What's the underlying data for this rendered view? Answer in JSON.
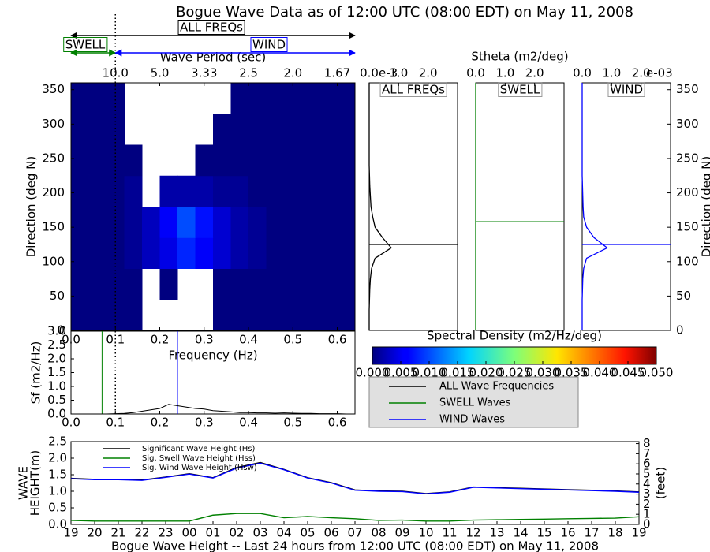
{
  "chart_data": [
    {
      "type": "heatmap",
      "title": "Bogue Wave Data as of 12:00 UTC (08:00 EDT) on May 11, 2008",
      "xlabel": "Frequency (Hz)",
      "x2label": "Wave Period (sec)",
      "ylabel": "Direction (deg N)",
      "x_edges": [
        0,
        0.04,
        0.08,
        0.12,
        0.16,
        0.2,
        0.24,
        0.28,
        0.32,
        0.36,
        0.4,
        0.44,
        0.48,
        0.52,
        0.56,
        0.6,
        0.64
      ],
      "y_edges": [
        0,
        45,
        90,
        135,
        180,
        225,
        270,
        315,
        360
      ],
      "z": [
        [
          0,
          0,
          0,
          0,
          null,
          null,
          null,
          null,
          0,
          0,
          0,
          0,
          0,
          0,
          0,
          0
        ],
        [
          0,
          0,
          0,
          0,
          null,
          0,
          null,
          null,
          0,
          0,
          0,
          0,
          0,
          0,
          0,
          0
        ],
        [
          0,
          0,
          0,
          0.001,
          0.003,
          0.005,
          0.008,
          0.006,
          0.004,
          0.002,
          0.001,
          0,
          0,
          0,
          0,
          0
        ],
        [
          0,
          0,
          0,
          0.001,
          0.003,
          0.006,
          0.01,
          0.007,
          0.004,
          0.002,
          0.001,
          0,
          0,
          0,
          0,
          0
        ],
        [
          0,
          0,
          0,
          0.001,
          null,
          0.002,
          0.002,
          0.002,
          0.001,
          0.001,
          0,
          0,
          0,
          0,
          0,
          0
        ],
        [
          0,
          0,
          0,
          0,
          null,
          null,
          null,
          0,
          0,
          0,
          0,
          0,
          0,
          0,
          0,
          0
        ],
        [
          0,
          0,
          0,
          null,
          null,
          null,
          null,
          null,
          0,
          0,
          0,
          0,
          0,
          0,
          0,
          0
        ],
        [
          0,
          0,
          0,
          null,
          null,
          null,
          null,
          null,
          null,
          0,
          0,
          0,
          0,
          0,
          0,
          0
        ]
      ],
      "xlim": [
        0,
        0.64
      ],
      "ylim": [
        0,
        360
      ],
      "xticks": [
        {
          "value": 0,
          "label": "0.0"
        },
        {
          "value": 0.1,
          "label": "0.1"
        },
        {
          "value": 0.2,
          "label": "0.2"
        },
        {
          "value": 0.3,
          "label": "0.3"
        },
        {
          "value": 0.4,
          "label": "0.4"
        },
        {
          "value": 0.5,
          "label": "0.5"
        },
        {
          "value": 0.6,
          "label": "0.6"
        }
      ],
      "x2ticks": [
        {
          "value": 0.1,
          "label": "10.0"
        },
        {
          "value": 0.2,
          "label": "5.0"
        },
        {
          "value": 0.3,
          "label": "3.33"
        },
        {
          "value": 0.4,
          "label": "2.5"
        },
        {
          "value": 0.5,
          "label": "2.0"
        },
        {
          "value": 0.6,
          "label": "1.67"
        }
      ],
      "yticks": [
        0,
        50,
        100,
        150,
        200,
        250,
        300,
        350
      ],
      "divider_x": 0.1,
      "annotations": {
        "all": {
          "text": "ALL FREQs",
          "color": "#000000"
        },
        "swell": {
          "text": "SWELL",
          "color": "#008000"
        },
        "wind": {
          "text": "WIND",
          "color": "#0000ff"
        }
      },
      "colormap": "jet",
      "colorbar": {
        "label": "Spectral Density (m2/Hz/deg)",
        "clim": [
          0,
          0.05
        ],
        "ticks": [
          {
            "value": 0,
            "label": "0.000"
          },
          {
            "value": 0.005,
            "label": "0.005"
          },
          {
            "value": 0.01,
            "label": "0.010"
          },
          {
            "value": 0.015,
            "label": "0.015"
          },
          {
            "value": 0.02,
            "label": "0.020"
          },
          {
            "value": 0.025,
            "label": "0.025"
          },
          {
            "value": 0.03,
            "label": "0.030"
          },
          {
            "value": 0.035,
            "label": "0.035"
          },
          {
            "value": 0.04,
            "label": "0.040"
          },
          {
            "value": 0.045,
            "label": "0.045"
          },
          {
            "value": 0.05,
            "label": "0.050"
          }
        ]
      }
    },
    {
      "type": "line",
      "ylabel": "Sf (m2/Hz)",
      "color": "#000000",
      "x": [
        0,
        0.02,
        0.04,
        0.06,
        0.08,
        0.1,
        0.12,
        0.14,
        0.16,
        0.18,
        0.2,
        0.22,
        0.24,
        0.26,
        0.28,
        0.3,
        0.32,
        0.34,
        0.36,
        0.38,
        0.4,
        0.42,
        0.44,
        0.46,
        0.48,
        0.5,
        0.52,
        0.54,
        0.56,
        0.58,
        0.6,
        0.62,
        0.64
      ],
      "values": [
        0,
        0,
        0,
        0,
        0,
        0.01,
        0.02,
        0.05,
        0.1,
        0.15,
        0.2,
        0.35,
        0.3,
        0.25,
        0.2,
        0.18,
        0.12,
        0.1,
        0.08,
        0.05,
        0.05,
        0.04,
        0.04,
        0.03,
        0.04,
        0.03,
        0.02,
        0.02,
        0.01,
        0.01,
        0.01,
        0,
        0
      ],
      "vlines": [
        {
          "x": 0.07,
          "color": "#008000"
        },
        {
          "x": 0.24,
          "color": "#0000ff"
        }
      ],
      "divider_x": 0.1,
      "xlim": [
        0,
        0.64
      ],
      "ylim": [
        0,
        3
      ],
      "xticks": [
        {
          "value": 0,
          "label": "0.0"
        },
        {
          "value": 0.1,
          "label": "0.1"
        },
        {
          "value": 0.2,
          "label": "0.2"
        },
        {
          "value": 0.3,
          "label": "0.3"
        },
        {
          "value": 0.4,
          "label": "0.4"
        },
        {
          "value": 0.5,
          "label": "0.5"
        },
        {
          "value": 0.6,
          "label": "0.6"
        }
      ],
      "yticks": [
        {
          "value": 0,
          "label": "0.0"
        },
        {
          "value": 0.5,
          "label": "0.5"
        },
        {
          "value": 1,
          "label": "1.0"
        },
        {
          "value": 1.5,
          "label": "1.5"
        },
        {
          "value": 2,
          "label": "2.0"
        },
        {
          "value": 2.5,
          "label": "2.5"
        },
        {
          "value": 3,
          "label": "3.0"
        }
      ]
    },
    {
      "type": "profile",
      "title": "Stheta (m2/deg)",
      "label": "ALL FREQs",
      "color": "#000000",
      "offset_text": "e-3",
      "y": [
        0,
        15,
        30,
        45,
        60,
        75,
        90,
        105,
        120,
        135,
        150,
        165,
        180,
        195,
        210,
        225,
        240,
        255,
        270,
        285,
        300,
        315,
        330,
        345,
        360
      ],
      "values": [
        0,
        0,
        0,
        0.01,
        0.02,
        0.04,
        0.08,
        0.2,
        0.75,
        0.45,
        0.2,
        0.12,
        0.06,
        0.04,
        0.02,
        0.01,
        0,
        0,
        0,
        0,
        0,
        0,
        0,
        0,
        0
      ],
      "mean_direction": 125,
      "xlim": [
        0,
        3
      ],
      "ylim": [
        0,
        360
      ],
      "xticks": [
        {
          "value": 0,
          "label": "0.0"
        },
        {
          "value": 1,
          "label": "1.0"
        },
        {
          "value": 2,
          "label": "2.0"
        }
      ]
    },
    {
      "type": "profile",
      "label": "SWELL",
      "color": "#008000",
      "y": [
        0,
        15,
        30,
        45,
        60,
        75,
        90,
        105,
        120,
        135,
        150,
        165,
        180,
        195,
        210,
        225,
        240,
        255,
        270,
        285,
        300,
        315,
        330,
        345,
        360
      ],
      "values": [
        0,
        0,
        0,
        0,
        0,
        0,
        0,
        0,
        0,
        0,
        0,
        0,
        0,
        0,
        0,
        0,
        0,
        0,
        0,
        0,
        0,
        0,
        0,
        0,
        0
      ],
      "mean_direction": 158,
      "xlim": [
        0,
        3
      ],
      "ylim": [
        0,
        360
      ],
      "xticks": [
        {
          "value": 0,
          "label": "0.0"
        },
        {
          "value": 1,
          "label": "1.0"
        },
        {
          "value": 2,
          "label": "2.0"
        }
      ]
    },
    {
      "type": "profile",
      "label": "WIND",
      "color": "#0000ff",
      "offset_text": "e-03",
      "ylabel": "Direction (deg N)",
      "y": [
        0,
        15,
        30,
        45,
        60,
        75,
        90,
        105,
        120,
        135,
        150,
        165,
        180,
        195,
        210,
        225,
        240,
        255,
        270,
        285,
        300,
        315,
        330,
        345,
        360
      ],
      "values": [
        0,
        0,
        0,
        0,
        0.01,
        0.02,
        0.05,
        0.15,
        0.85,
        0.4,
        0.15,
        0.05,
        0.03,
        0.02,
        0.01,
        0,
        0,
        0,
        0,
        0,
        0,
        0,
        0,
        0,
        0
      ],
      "mean_direction": 125,
      "xlim": [
        0,
        3
      ],
      "ylim": [
        0,
        360
      ],
      "xticks": [
        {
          "value": 0,
          "label": "0.0"
        },
        {
          "value": 1,
          "label": "1.0"
        },
        {
          "value": 2,
          "label": "2.0"
        }
      ],
      "yticks": [
        0,
        50,
        100,
        150,
        200,
        250,
        300,
        350
      ]
    },
    {
      "type": "legend",
      "entries": [
        {
          "name": "ALL Wave Frequencies",
          "color": "#000000"
        },
        {
          "name": "SWELL Waves",
          "color": "#008000"
        },
        {
          "name": "WIND Waves",
          "color": "#0000ff"
        }
      ]
    },
    {
      "type": "timeseries",
      "xlabel": "Bogue Wave Height -- Last 24 hours from 12:00 UTC (08:00 EDT) on May 11, 2008",
      "ylabel": [
        "WAVE",
        "HEIGHT(m)"
      ],
      "y2label": "(feet)",
      "categories": [
        "19",
        "20",
        "21",
        "22",
        "23",
        "00",
        "01",
        "02",
        "03",
        "04",
        "05",
        "06",
        "07",
        "08",
        "09",
        "10",
        "11",
        "12",
        "13",
        "14",
        "15",
        "16",
        "17",
        "18",
        "19"
      ],
      "series": [
        {
          "name": "Significant Wave Height (Hs)",
          "color": "#000000",
          "values": [
            1.39,
            1.36,
            1.36,
            1.34,
            1.43,
            1.53,
            1.41,
            1.72,
            1.87,
            1.66,
            1.41,
            1.26,
            1.04,
            1.01,
            1.0,
            0.93,
            0.98,
            1.13,
            1.11,
            1.09,
            1.07,
            1.05,
            1.03,
            1.01,
            0.98
          ]
        },
        {
          "name": "Sig. Swell Wave Height (Hss)",
          "color": "#008000",
          "values": [
            0.12,
            0.1,
            0.1,
            0.1,
            0.1,
            0.1,
            0.28,
            0.33,
            0.33,
            0.2,
            0.24,
            0.2,
            0.17,
            0.12,
            0.13,
            0.1,
            0.1,
            0.13,
            0.14,
            0.15,
            0.16,
            0.17,
            0.18,
            0.19,
            0.23
          ]
        },
        {
          "name": "Sig. Wind Wave Height (Hsw)",
          "color": "#0000ff",
          "values": [
            1.38,
            1.35,
            1.35,
            1.33,
            1.42,
            1.52,
            1.4,
            1.7,
            1.85,
            1.65,
            1.4,
            1.25,
            1.03,
            1.0,
            0.99,
            0.92,
            0.97,
            1.12,
            1.1,
            1.08,
            1.06,
            1.04,
            1.02,
            1.0,
            0.97
          ]
        }
      ],
      "ylim": [
        0,
        2.5
      ],
      "yticks": [
        {
          "value": 0,
          "label": "0.0"
        },
        {
          "value": 0.5,
          "label": "0.5"
        },
        {
          "value": 1,
          "label": "1.0"
        },
        {
          "value": 1.5,
          "label": "1.5"
        },
        {
          "value": 2,
          "label": "2.0"
        },
        {
          "value": 2.5,
          "label": "2.5"
        }
      ],
      "y2lim": [
        0,
        8.2
      ],
      "y2ticks": [
        0,
        1,
        2,
        3,
        4,
        5,
        6,
        7,
        8
      ]
    }
  ]
}
